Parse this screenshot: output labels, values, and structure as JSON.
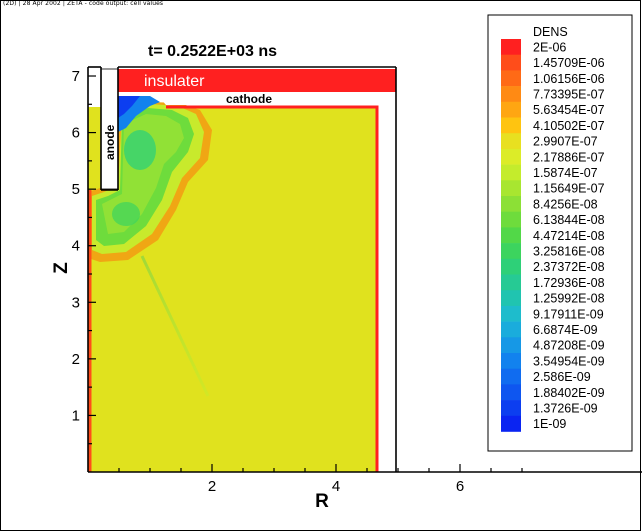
{
  "header": "(2D) | 28 Apr 2002 | ZETA - code output: cell values",
  "chart_data": {
    "type": "heatmap",
    "time_label": "t=  0.2522E+03 ns",
    "xlabel": "R",
    "ylabel": "Z",
    "xlim": [
      0,
      7.2
    ],
    "ylim": [
      0,
      7.2
    ],
    "x_ticks": [
      "2",
      "4",
      "6"
    ],
    "y_ticks": [
      "1",
      "2",
      "3",
      "4",
      "5",
      "6",
      "7"
    ],
    "labels": {
      "insulator": "insulater",
      "cathode": "cathode",
      "anode": "anode"
    },
    "colorbar": {
      "title": "DENS",
      "levels": [
        "2E-06",
        "1.45709E-06",
        "1.06156E-06",
        "7.73395E-07",
        "5.63454E-07",
        "4.10502E-07",
        "2.9907E-07",
        "2.17886E-07",
        "1.5874E-07",
        "1.15649E-07",
        "8.4256E-08",
        "6.13844E-08",
        "4.47214E-08",
        "3.25816E-08",
        "2.37372E-08",
        "1.72936E-08",
        "1.25992E-08",
        "9.17911E-09",
        "6.6874E-09",
        "4.87208E-09",
        "3.54954E-09",
        "2.586E-09",
        "1.88402E-09",
        "1.3726E-09",
        "1E-09"
      ],
      "colors": [
        "#ff2020",
        "#ff4d1a",
        "#ff6a16",
        "#ff8a14",
        "#ffa612",
        "#ffc410",
        "#e8e020",
        "#dcec28",
        "#c4ec2c",
        "#a8e630",
        "#8ce036",
        "#6edc3c",
        "#52d848",
        "#3cd45e",
        "#2ed078",
        "#26ca94",
        "#20c4b0",
        "#1ebccc",
        "#1aacdc",
        "#1698e6",
        "#1282ee",
        "#106cf0",
        "#0e56f0",
        "#0c3ef0",
        "#0a24f2"
      ]
    }
  }
}
